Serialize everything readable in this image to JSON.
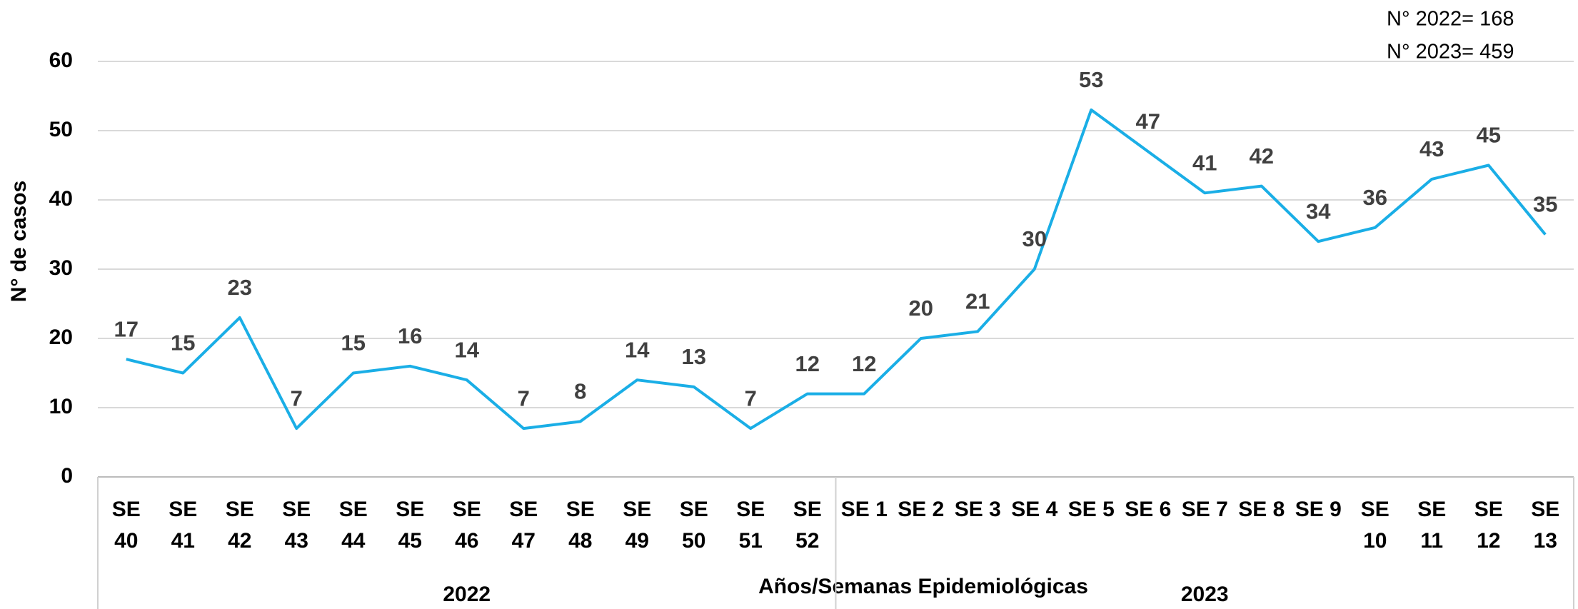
{
  "chart_data": {
    "type": "line",
    "y_label": "N° de casos",
    "x_label": "Años/Semanas Epidemiológicas",
    "annotations": [
      "N° 2022= 168",
      "N° 2023= 459"
    ],
    "groups": [
      "2022",
      "2023"
    ],
    "categories": [
      "SE 40",
      "SE 41",
      "SE 42",
      "SE 43",
      "SE 44",
      "SE 45",
      "SE 46",
      "SE 47",
      "SE 48",
      "SE 49",
      "SE 50",
      "SE 51",
      "SE 52",
      "SE 1",
      "SE 2",
      "SE 3",
      "SE 4",
      "SE 5",
      "SE 6",
      "SE 7",
      "SE 8",
      "SE 9",
      "SE 10",
      "SE 11",
      "SE 12",
      "SE 13"
    ],
    "values": [
      17,
      15,
      23,
      7,
      15,
      16,
      14,
      7,
      8,
      14,
      13,
      7,
      12,
      12,
      20,
      21,
      30,
      53,
      47,
      41,
      42,
      34,
      36,
      43,
      45,
      35
    ],
    "color": "#1aaee6",
    "ylim": [
      0,
      60
    ],
    "yticks": [
      0,
      10,
      20,
      30,
      40,
      50,
      60
    ],
    "grid": true
  }
}
